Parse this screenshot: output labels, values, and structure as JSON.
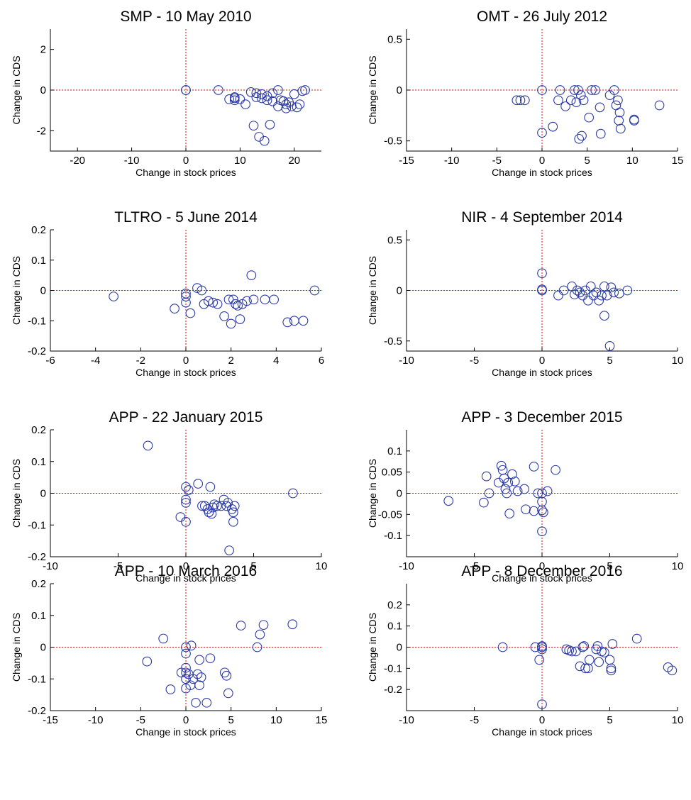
{
  "chart_data": [
    {
      "type": "scatter",
      "title": "SMP - 10 May 2010",
      "xlabel": "Change in stock prices",
      "ylabel": "Change in CDS",
      "xlim": [
        -25,
        25
      ],
      "ylim": [
        -3,
        3
      ],
      "xticks": [
        -20,
        -10,
        0,
        10,
        20
      ],
      "xticklabels": [
        "-20",
        "-10",
        "0",
        "10",
        "20"
      ],
      "yticks": [
        -2,
        0,
        2
      ],
      "yticklabels": [
        "-2",
        "0",
        "2"
      ],
      "points": [
        [
          0,
          0
        ],
        [
          0,
          0
        ],
        [
          6,
          0
        ],
        [
          8,
          -0.45
        ],
        [
          9,
          -0.4
        ],
        [
          9,
          -0.5
        ],
        [
          9,
          -0.35
        ],
        [
          10,
          -0.45
        ],
        [
          11,
          -0.7
        ],
        [
          12,
          -0.1
        ],
        [
          12.5,
          -1.75
        ],
        [
          13,
          -0.15
        ],
        [
          13,
          -0.35
        ],
        [
          13.5,
          -2.3
        ],
        [
          14,
          -0.4
        ],
        [
          14,
          -0.2
        ],
        [
          14.5,
          -2.5
        ],
        [
          15,
          -0.3
        ],
        [
          15,
          -0.5
        ],
        [
          15.5,
          -1.7
        ],
        [
          16,
          -0.15
        ],
        [
          16,
          -0.55
        ],
        [
          17,
          0
        ],
        [
          17,
          -0.8
        ],
        [
          17.5,
          -0.5
        ],
        [
          18,
          -0.55
        ],
        [
          18.5,
          -0.9
        ],
        [
          18.5,
          -0.7
        ],
        [
          19,
          -0.6
        ],
        [
          19.5,
          -0.8
        ],
        [
          20,
          -0.2
        ],
        [
          20.5,
          -0.85
        ],
        [
          21,
          -0.7
        ],
        [
          21.5,
          -0.05
        ],
        [
          22,
          0
        ]
      ]
    },
    {
      "type": "scatter",
      "title": "OMT - 26 July 2012",
      "xlabel": "Change in stock prices",
      "ylabel": "Change in CDS",
      "xlim": [
        -15,
        15
      ],
      "ylim": [
        -0.6,
        0.6
      ],
      "xticks": [
        -15,
        -10,
        -5,
        0,
        5,
        10,
        15
      ],
      "xticklabels": [
        "-15",
        "-10",
        "-5",
        "0",
        "5",
        "10",
        "15"
      ],
      "yticks": [
        -0.5,
        0,
        0.5
      ],
      "yticklabels": [
        "-0.5",
        "0",
        "0.5"
      ],
      "points": [
        [
          -2.8,
          -0.1
        ],
        [
          -2.4,
          -0.1
        ],
        [
          -1.9,
          -0.1
        ],
        [
          0,
          0
        ],
        [
          0,
          -0.42
        ],
        [
          1.2,
          -0.36
        ],
        [
          1.8,
          -0.1
        ],
        [
          2,
          0
        ],
        [
          2.6,
          -0.16
        ],
        [
          3.2,
          -0.1
        ],
        [
          3.6,
          0
        ],
        [
          3.8,
          -0.12
        ],
        [
          4,
          0
        ],
        [
          4.1,
          -0.48
        ],
        [
          4.3,
          -0.05
        ],
        [
          4.4,
          -0.45
        ],
        [
          4.6,
          -0.1
        ],
        [
          5.2,
          -0.27
        ],
        [
          5.5,
          0
        ],
        [
          5.9,
          0
        ],
        [
          6.4,
          -0.17
        ],
        [
          6.5,
          -0.43
        ],
        [
          7.5,
          -0.05
        ],
        [
          8,
          0
        ],
        [
          8.2,
          -0.15
        ],
        [
          8.4,
          -0.1
        ],
        [
          8.5,
          -0.3
        ],
        [
          8.6,
          -0.22
        ],
        [
          8.7,
          -0.38
        ],
        [
          10.2,
          -0.29
        ],
        [
          10.2,
          -0.3
        ],
        [
          13,
          -0.15
        ]
      ]
    },
    {
      "type": "scatter",
      "title": "TLTRO - 5 June 2014",
      "xlabel": "Change in stock prices",
      "ylabel": "Change in CDS",
      "xlim": [
        -6,
        6
      ],
      "ylim": [
        -0.2,
        0.2
      ],
      "xticks": [
        -6,
        -4,
        -2,
        0,
        2,
        4,
        6
      ],
      "xticklabels": [
        "-6",
        "-4",
        "-2",
        "0",
        "2",
        "4",
        "6"
      ],
      "yticks": [
        -0.2,
        -0.1,
        0,
        0.1,
        0.2
      ],
      "yticklabels": [
        "-0.2",
        "-0.1",
        "0",
        "0.1",
        "0.2"
      ],
      "points": [
        [
          -3.2,
          -0.02
        ],
        [
          -0.5,
          -0.06
        ],
        [
          0,
          -0.01
        ],
        [
          0,
          -0.02
        ],
        [
          0,
          -0.04
        ],
        [
          0.2,
          -0.075
        ],
        [
          0.5,
          0.008
        ],
        [
          0.7,
          0
        ],
        [
          0.8,
          -0.045
        ],
        [
          1,
          -0.035
        ],
        [
          1.2,
          -0.04
        ],
        [
          1.4,
          -0.045
        ],
        [
          1.7,
          -0.085
        ],
        [
          1.9,
          -0.03
        ],
        [
          2,
          -0.11
        ],
        [
          2.1,
          -0.03
        ],
        [
          2.2,
          -0.045
        ],
        [
          2.3,
          -0.05
        ],
        [
          2.4,
          -0.095
        ],
        [
          2.5,
          -0.045
        ],
        [
          2.7,
          -0.035
        ],
        [
          2.9,
          0.05
        ],
        [
          3,
          -0.03
        ],
        [
          3.5,
          -0.03
        ],
        [
          3.9,
          -0.03
        ],
        [
          4.5,
          -0.105
        ],
        [
          4.8,
          -0.1
        ],
        [
          5.2,
          -0.1
        ],
        [
          5.7,
          0
        ]
      ]
    },
    {
      "type": "scatter",
      "title": "NIR - 4 September 2014",
      "xlabel": "Change in stock prices",
      "ylabel": "Change in CDS",
      "xlim": [
        -10,
        10
      ],
      "ylim": [
        -0.6,
        0.6
      ],
      "xticks": [
        -10,
        -5,
        0,
        5,
        10
      ],
      "xticklabels": [
        "-10",
        "-5",
        "0",
        "5",
        "10"
      ],
      "yticks": [
        -0.5,
        0,
        0.5
      ],
      "yticklabels": [
        "-0.5",
        "0",
        "0.5"
      ],
      "points": [
        [
          0,
          0.17
        ],
        [
          0,
          0.01
        ],
        [
          0,
          0
        ],
        [
          1.2,
          -0.05
        ],
        [
          1.6,
          0
        ],
        [
          2.2,
          0.04
        ],
        [
          2.4,
          -0.04
        ],
        [
          2.6,
          0
        ],
        [
          2.8,
          -0.02
        ],
        [
          3,
          -0.05
        ],
        [
          3.2,
          0
        ],
        [
          3.4,
          -0.1
        ],
        [
          3.6,
          0.04
        ],
        [
          3.8,
          -0.05
        ],
        [
          4,
          -0.02
        ],
        [
          4.2,
          -0.1
        ],
        [
          4.4,
          -0.05
        ],
        [
          4.6,
          0.04
        ],
        [
          4.6,
          -0.25
        ],
        [
          4.8,
          -0.05
        ],
        [
          5,
          -0.55
        ],
        [
          5.1,
          0.03
        ],
        [
          5.3,
          -0.02
        ],
        [
          5.7,
          -0.03
        ],
        [
          6.3,
          0
        ]
      ]
    },
    {
      "type": "scatter",
      "title": "APP - 22 January 2015",
      "xlabel": "Change in stock prices",
      "ylabel": "Change in CDS",
      "xlim": [
        -10,
        10
      ],
      "ylim": [
        -0.2,
        0.2
      ],
      "xticks": [
        -10,
        -5,
        0,
        5,
        10
      ],
      "xticklabels": [
        "-10",
        "-5",
        "0",
        "5",
        "10"
      ],
      "yticks": [
        -0.2,
        -0.1,
        0,
        0.1,
        0.2
      ],
      "yticklabels": [
        "-0.2",
        "-0.1",
        "0",
        "0.1",
        "0.2"
      ],
      "points": [
        [
          -2.8,
          0.15
        ],
        [
          -0.4,
          -0.075
        ],
        [
          0,
          0.02
        ],
        [
          0,
          -0.02
        ],
        [
          0,
          -0.03
        ],
        [
          0,
          -0.09
        ],
        [
          0.2,
          0.01
        ],
        [
          0.9,
          0.03
        ],
        [
          1.2,
          -0.04
        ],
        [
          1.4,
          -0.04
        ],
        [
          1.6,
          -0.05
        ],
        [
          1.7,
          -0.06
        ],
        [
          1.8,
          0.02
        ],
        [
          1.9,
          -0.065
        ],
        [
          2,
          -0.045
        ],
        [
          2.1,
          -0.035
        ],
        [
          2.3,
          -0.04
        ],
        [
          2.6,
          -0.04
        ],
        [
          2.8,
          -0.02
        ],
        [
          3,
          -0.04
        ],
        [
          3.1,
          -0.03
        ],
        [
          3.2,
          -0.18
        ],
        [
          3.4,
          -0.05
        ],
        [
          3.5,
          -0.06
        ],
        [
          3.5,
          -0.09
        ],
        [
          3.6,
          -0.04
        ],
        [
          7.9,
          0
        ]
      ]
    },
    {
      "type": "scatter",
      "title": "APP - 3 December 2015",
      "xlabel": "Change in stock prices",
      "ylabel": "Change in CDS",
      "xlim": [
        -10,
        10
      ],
      "ylim": [
        -0.15,
        0.15
      ],
      "xticks": [
        -10,
        -5,
        0,
        5,
        10
      ],
      "xticklabels": [
        "-10",
        "-5",
        "0",
        "5",
        "10"
      ],
      "yticks": [
        -0.1,
        -0.05,
        0,
        0.05,
        0.1
      ],
      "yticklabels": [
        "-0.1",
        "-0.05",
        "0",
        "0.05",
        "0.1"
      ],
      "points": [
        [
          -6.9,
          -0.018
        ],
        [
          -4.3,
          -0.022
        ],
        [
          -4.1,
          0.04
        ],
        [
          -3.9,
          0
        ],
        [
          -3.2,
          0.025
        ],
        [
          -3,
          0.065
        ],
        [
          -2.9,
          0.055
        ],
        [
          -2.8,
          0.035
        ],
        [
          -2.7,
          0.01
        ],
        [
          -2.6,
          0
        ],
        [
          -2.5,
          0.025
        ],
        [
          -2.4,
          -0.048
        ],
        [
          -2.2,
          0.045
        ],
        [
          -2,
          0.028
        ],
        [
          -1.8,
          0.005
        ],
        [
          -1.3,
          0.01
        ],
        [
          -1.2,
          -0.038
        ],
        [
          -0.6,
          0.063
        ],
        [
          -0.6,
          -0.042
        ],
        [
          -0.3,
          0
        ],
        [
          0,
          0
        ],
        [
          0,
          -0.02
        ],
        [
          0,
          -0.04
        ],
        [
          0,
          -0.09
        ],
        [
          0.1,
          -0.045
        ],
        [
          0.4,
          0.005
        ],
        [
          1,
          0.055
        ]
      ]
    },
    {
      "type": "scatter",
      "title": "APP - 10 March 2016",
      "xlabel": "Change in stock prices",
      "ylabel": "Change in CDS",
      "xlim": [
        -15,
        15
      ],
      "ylim": [
        -0.2,
        0.2
      ],
      "xticks": [
        -15,
        -10,
        -5,
        0,
        5,
        10,
        15
      ],
      "xticklabels": [
        "-15",
        "-10",
        "-5",
        "0",
        "5",
        "10",
        "15"
      ],
      "yticks": [
        -0.2,
        -0.1,
        0,
        0.1,
        0.2
      ],
      "yticklabels": [
        "-0.2",
        "-0.1",
        "0",
        "0.1",
        "0.2"
      ],
      "points": [
        [
          -4.3,
          -0.045
        ],
        [
          -2.5,
          0.027
        ],
        [
          -1.7,
          -0.133
        ],
        [
          -0.5,
          -0.08
        ],
        [
          0,
          -0.02
        ],
        [
          0,
          0
        ],
        [
          0,
          -0.065
        ],
        [
          0,
          -0.08
        ],
        [
          0,
          -0.1
        ],
        [
          0,
          -0.13
        ],
        [
          0.3,
          -0.085
        ],
        [
          0.5,
          -0.12
        ],
        [
          0.6,
          0.005
        ],
        [
          0.8,
          -0.1
        ],
        [
          1.1,
          -0.175
        ],
        [
          1.3,
          -0.085
        ],
        [
          1.5,
          -0.04
        ],
        [
          1.5,
          -0.12
        ],
        [
          1.7,
          -0.095
        ],
        [
          2.3,
          -0.175
        ],
        [
          2.7,
          -0.035
        ],
        [
          4.3,
          -0.08
        ],
        [
          4.5,
          -0.09
        ],
        [
          4.7,
          -0.145
        ],
        [
          6.1,
          0.068
        ],
        [
          7.9,
          0
        ],
        [
          8.2,
          0.04
        ],
        [
          8.6,
          0.07
        ],
        [
          11.8,
          0.072
        ]
      ]
    },
    {
      "type": "scatter",
      "title": "APP - 8 December 2016",
      "xlabel": "Change in stock prices",
      "ylabel": "Change in CDS",
      "xlim": [
        -10,
        10
      ],
      "ylim": [
        -0.3,
        0.3
      ],
      "xticks": [
        -10,
        -5,
        0,
        5,
        10
      ],
      "xticklabels": [
        "-10",
        "-5",
        "0",
        "5",
        "10"
      ],
      "yticks": [
        -0.2,
        -0.1,
        0,
        0.1,
        0.2
      ],
      "yticklabels": [
        "-0.2",
        "-0.1",
        "0",
        "0.1",
        "0.2"
      ],
      "points": [
        [
          -2.9,
          0
        ],
        [
          -0.5,
          0
        ],
        [
          -0.2,
          -0.06
        ],
        [
          0,
          0
        ],
        [
          0,
          0.005
        ],
        [
          0,
          -0.01
        ],
        [
          0,
          -0.27
        ],
        [
          1.8,
          -0.01
        ],
        [
          2,
          -0.015
        ],
        [
          2.2,
          -0.02
        ],
        [
          2.5,
          -0.02
        ],
        [
          2.8,
          -0.09
        ],
        [
          3,
          0
        ],
        [
          3.1,
          0.005
        ],
        [
          3.2,
          -0.1
        ],
        [
          3.4,
          -0.1
        ],
        [
          3.5,
          -0.06
        ],
        [
          4,
          -0.01
        ],
        [
          4.1,
          0.005
        ],
        [
          4.2,
          -0.07
        ],
        [
          4.4,
          -0.02
        ],
        [
          4.6,
          -0.025
        ],
        [
          5,
          -0.06
        ],
        [
          5.1,
          -0.1
        ],
        [
          5.1,
          -0.11
        ],
        [
          5.2,
          0.015
        ],
        [
          7,
          0.04
        ],
        [
          9.3,
          -0.095
        ],
        [
          9.6,
          -0.11
        ]
      ]
    }
  ]
}
